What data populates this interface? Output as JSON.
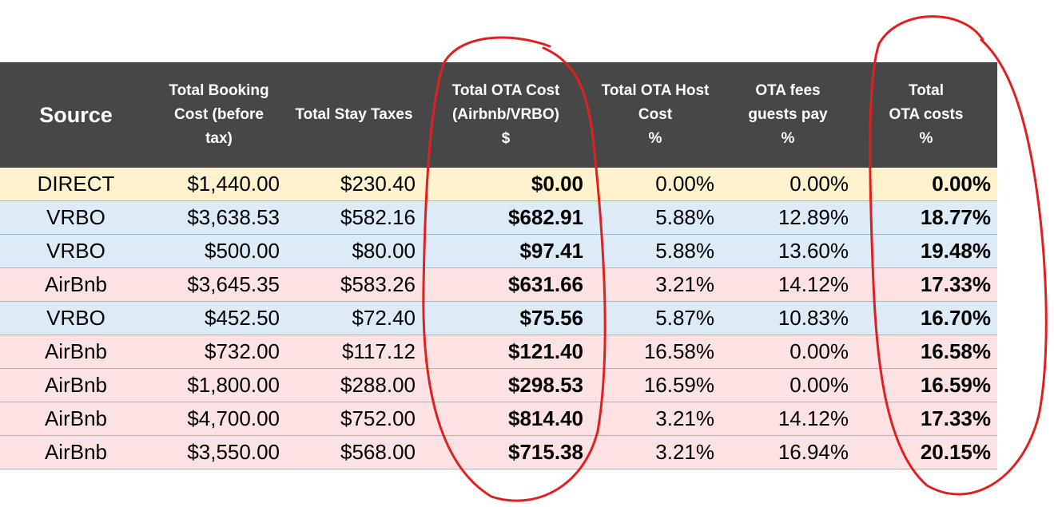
{
  "table": {
    "headers": [
      "Source",
      "Total Booking\nCost (before\ntax)",
      "Total Stay Taxes",
      "Total OTA Cost\n(Airbnb/VRBO)\n$",
      "Total OTA Host\nCost\n%",
      "OTA fees\nguests pay\n%",
      "Total\nOTA costs\n%"
    ],
    "rows": [
      {
        "source": "DIRECT",
        "booking": "$1,440.00",
        "taxes": "$230.40",
        "ota_cost": "$0.00",
        "host_pct": "0.00%",
        "guest_pct": "0.00%",
        "total_pct": "0.00%",
        "color": "#fff2cc"
      },
      {
        "source": "VRBO",
        "booking": "$3,638.53",
        "taxes": "$582.16",
        "ota_cost": "$682.91",
        "host_pct": "5.88%",
        "guest_pct": "12.89%",
        "total_pct": "18.77%",
        "color": "#ddebf7"
      },
      {
        "source": "VRBO",
        "booking": "$500.00",
        "taxes": "$80.00",
        "ota_cost": "$97.41",
        "host_pct": "5.88%",
        "guest_pct": "13.60%",
        "total_pct": "19.48%",
        "color": "#ddebf7"
      },
      {
        "source": "AirBnb",
        "booking": "$3,645.35",
        "taxes": "$583.26",
        "ota_cost": "$631.66",
        "host_pct": "3.21%",
        "guest_pct": "14.12%",
        "total_pct": "17.33%",
        "color": "#fde2e4"
      },
      {
        "source": "VRBO",
        "booking": "$452.50",
        "taxes": "$72.40",
        "ota_cost": "$75.56",
        "host_pct": "5.87%",
        "guest_pct": "10.83%",
        "total_pct": "16.70%",
        "color": "#ddebf7"
      },
      {
        "source": "AirBnb",
        "booking": "$732.00",
        "taxes": "$117.12",
        "ota_cost": "$121.40",
        "host_pct": "16.58%",
        "guest_pct": "0.00%",
        "total_pct": "16.58%",
        "color": "#fde2e4"
      },
      {
        "source": "AirBnb",
        "booking": "$1,800.00",
        "taxes": "$288.00",
        "ota_cost": "$298.53",
        "host_pct": "16.59%",
        "guest_pct": "0.00%",
        "total_pct": "16.59%",
        "color": "#fde2e4"
      },
      {
        "source": "AirBnb",
        "booking": "$4,700.00",
        "taxes": "$752.00",
        "ota_cost": "$814.40",
        "host_pct": "3.21%",
        "guest_pct": "14.12%",
        "total_pct": "17.33%",
        "color": "#fde2e4"
      },
      {
        "source": "AirBnb",
        "booking": "$3,550.00",
        "taxes": "$568.00",
        "ota_cost": "$715.38",
        "host_pct": "3.21%",
        "guest_pct": "16.94%",
        "total_pct": "20.15%",
        "color": "#fde2e4"
      }
    ]
  },
  "annotations": {
    "circle_color": "#e02020",
    "circled_columns": [
      "ota_cost",
      "total_pct"
    ]
  }
}
